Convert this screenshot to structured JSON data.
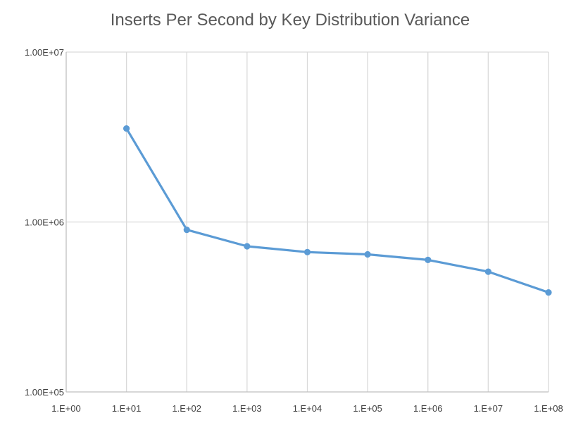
{
  "chart_data": {
    "type": "line",
    "title": "Inserts Per Second by Key Distribution Variance",
    "xlabel": "",
    "ylabel": "",
    "x_scale": "log",
    "y_scale": "log",
    "xlim": [
      1,
      100000000
    ],
    "ylim": [
      100000,
      10000000
    ],
    "x_ticks": [
      "1.E+00",
      "1.E+01",
      "1.E+02",
      "1.E+03",
      "1.E+04",
      "1.E+05",
      "1.E+06",
      "1.E+07",
      "1.E+08"
    ],
    "y_ticks": [
      "1.00E+05",
      "1.00E+06",
      "1.00E+07"
    ],
    "grid": true,
    "legend": "none",
    "color": "#5b9bd5",
    "series": [
      {
        "x": [
          10,
          100,
          1000,
          10000,
          100000,
          1000000,
          10000000,
          100000000
        ],
        "values": [
          3550000,
          900000,
          720000,
          665000,
          645000,
          598000,
          510000,
          385000
        ]
      }
    ]
  }
}
